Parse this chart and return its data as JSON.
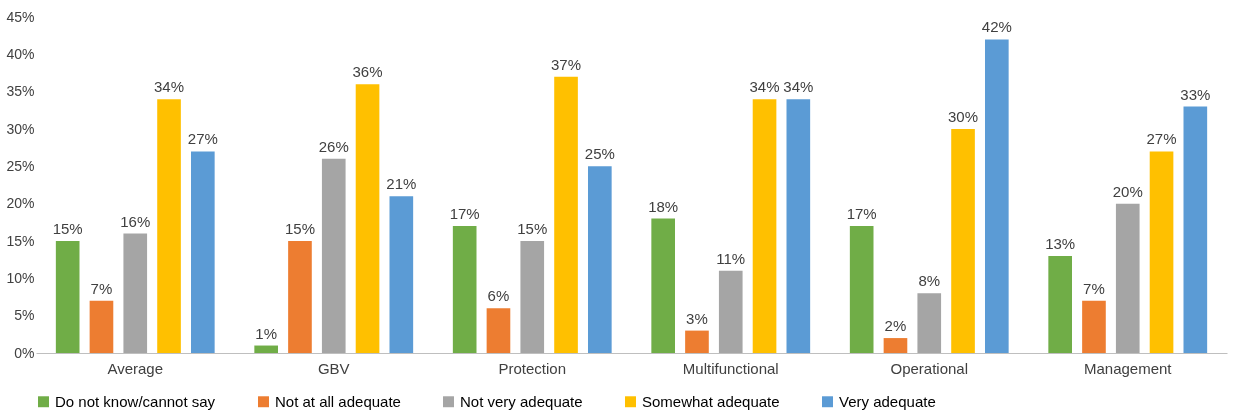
{
  "chart_data": {
    "type": "bar",
    "categories": [
      "Average",
      "GBV",
      "Protection",
      "Multifunctional",
      "Operational",
      "Management"
    ],
    "series": [
      {
        "name": "Do not know/cannot say",
        "color": "#70ad47",
        "values": [
          15,
          1,
          17,
          18,
          17,
          13
        ],
        "value_labels": [
          "15%",
          "1%",
          "17%",
          "18%",
          "17%",
          "13%"
        ]
      },
      {
        "name": "Not at all adequate",
        "color": "#ed7d31",
        "values": [
          7,
          15,
          6,
          3,
          2,
          7
        ],
        "value_labels": [
          "7%",
          "15%",
          "6%",
          "3%",
          "2%",
          "7%"
        ]
      },
      {
        "name": "Not very adequate",
        "color": "#a5a5a5",
        "values": [
          16,
          26,
          15,
          11,
          8,
          20
        ],
        "value_labels": [
          "16%",
          "26%",
          "15%",
          "11%",
          "8%",
          "20%"
        ]
      },
      {
        "name": "Somewhat adequate",
        "color": "#ffc000",
        "values": [
          34,
          36,
          37,
          34,
          30,
          27
        ],
        "value_labels": [
          "34%",
          "36%",
          "37%",
          "34%",
          "30%",
          "27%"
        ]
      },
      {
        "name": "Very adequate",
        "color": "#5b9bd5",
        "values": [
          27,
          21,
          25,
          34,
          42,
          33
        ],
        "value_labels": [
          "27%",
          "21%",
          "25%",
          "34%",
          "42%",
          "33%"
        ]
      }
    ],
    "ylim": [
      0,
      45
    ],
    "yticks": [
      {
        "value": 0,
        "label": "0%"
      },
      {
        "value": 5,
        "label": "5%"
      },
      {
        "value": 10,
        "label": "10%"
      },
      {
        "value": 15,
        "label": "15%"
      },
      {
        "value": 20,
        "label": "20%"
      },
      {
        "value": 25,
        "label": "25%"
      },
      {
        "value": 30,
        "label": "30%"
      },
      {
        "value": 35,
        "label": "35%"
      },
      {
        "value": 40,
        "label": "40%"
      },
      {
        "value": 45,
        "label": "45%"
      }
    ],
    "grid": false,
    "legend": "bottom"
  }
}
